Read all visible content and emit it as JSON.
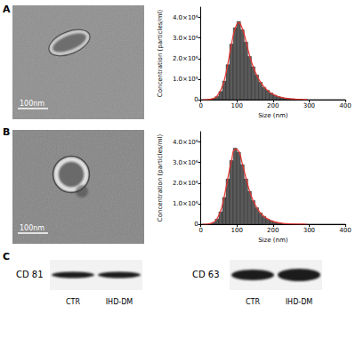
{
  "chart_data": [
    {
      "type": "histogram",
      "xlabel": "Size (nm)",
      "ylabel": "Concentration (particles/ml)",
      "bins": [
        0,
        10,
        20,
        30,
        40,
        50,
        60,
        70,
        80,
        90,
        100,
        110,
        120,
        130,
        140,
        150,
        160,
        170,
        180,
        190,
        200,
        210,
        220,
        230,
        240,
        250,
        260,
        270,
        280,
        290,
        300,
        310,
        320,
        330,
        340,
        350,
        360,
        370,
        380,
        390,
        400
      ],
      "counts": [
        0,
        0,
        20000,
        50000,
        150000,
        400000,
        900000,
        1700000,
        2700000,
        3500000,
        3800000,
        3400000,
        2800000,
        2100000,
        1600000,
        1200000,
        850000,
        600000,
        450000,
        320000,
        220000,
        150000,
        100000,
        70000,
        50000,
        30000,
        20000,
        10000,
        0,
        0,
        0,
        0,
        0,
        0,
        0,
        0,
        0,
        0,
        0,
        0
      ],
      "color": "#5a5a5a",
      "fit": {
        "x": [
          5,
          15,
          25,
          35,
          45,
          55,
          65,
          75,
          85,
          95,
          105,
          115,
          125,
          135,
          145,
          155,
          165,
          175,
          185,
          195,
          205,
          215,
          225,
          235,
          245,
          255,
          265,
          275,
          285,
          295
        ],
        "y": [
          0,
          0,
          15000,
          60000,
          180000,
          450000,
          950000,
          1750000,
          2700000,
          3450000,
          3750000,
          3450000,
          2850000,
          2150000,
          1600000,
          1180000,
          860000,
          620000,
          440000,
          310000,
          215000,
          150000,
          105000,
          72000,
          50000,
          34000,
          22000,
          14000,
          9000,
          5000
        ],
        "color": "#e8322d",
        "line_style": "solid"
      },
      "xlim": [
        0,
        400
      ],
      "xticks": [
        0,
        100,
        200,
        300,
        400
      ],
      "ylim": [
        0,
        4500000
      ],
      "yticks": [
        0,
        {
          "value": 1000000,
          "label": "1.0×10⁶"
        },
        {
          "value": 2000000,
          "label": "2.0×10⁶"
        },
        {
          "value": 3000000,
          "label": "3.0×10⁶"
        },
        {
          "value": 4000000,
          "label": "4.0×10⁶"
        }
      ],
      "grid": false
    },
    {
      "type": "histogram",
      "xlabel": "Size (nm)",
      "ylabel": "Concentration (particles/ml)",
      "bins": [
        0,
        10,
        20,
        30,
        40,
        50,
        60,
        70,
        80,
        90,
        100,
        110,
        120,
        130,
        140,
        150,
        160,
        170,
        180,
        190,
        200,
        210,
        220,
        230,
        240,
        250,
        260,
        270,
        280,
        290,
        300,
        310,
        320,
        330,
        340,
        350,
        360,
        370,
        380,
        390,
        400
      ],
      "counts": [
        0,
        0,
        30000,
        80000,
        250000,
        600000,
        1300000,
        2200000,
        3100000,
        3700000,
        3500000,
        2900000,
        2200000,
        1600000,
        1150000,
        800000,
        550000,
        380000,
        250000,
        170000,
        110000,
        70000,
        40000,
        25000,
        15000,
        8000,
        4000,
        0,
        0,
        0,
        0,
        0,
        0,
        0,
        0,
        0,
        0,
        0,
        0,
        0
      ],
      "color": "#5a5a5a",
      "fit": {
        "x": [
          5,
          15,
          25,
          35,
          45,
          55,
          65,
          75,
          85,
          95,
          105,
          115,
          125,
          135,
          145,
          155,
          165,
          175,
          185,
          195,
          205,
          215,
          225,
          235,
          245,
          255,
          265,
          275,
          285,
          295
        ],
        "y": [
          0,
          0,
          25000,
          90000,
          270000,
          650000,
          1350000,
          2250000,
          3100000,
          3650000,
          3550000,
          2950000,
          2250000,
          1620000,
          1150000,
          800000,
          550000,
          380000,
          255000,
          170000,
          112000,
          72000,
          44000,
          27000,
          16000,
          9000,
          5000,
          2500,
          1200,
          500
        ],
        "color": "#e8322d",
        "line_style": "solid"
      },
      "xlim": [
        0,
        400
      ],
      "xticks": [
        0,
        100,
        200,
        300,
        400
      ],
      "ylim": [
        0,
        4500000
      ],
      "yticks": [
        0,
        {
          "value": 1000000,
          "label": "1.0×10⁶"
        },
        {
          "value": 2000000,
          "label": "2.0×10⁶"
        },
        {
          "value": 3000000,
          "label": "3.0×10⁶"
        },
        {
          "value": 4000000,
          "label": "4.0×10⁶"
        }
      ],
      "grid": false
    }
  ],
  "figure": {
    "panel_labels": [
      "A",
      "B",
      "C"
    ],
    "micrographs": [
      {
        "scale_bar": "100nm"
      },
      {
        "scale_bar": "100nm"
      }
    ],
    "blots": [
      {
        "title": "CD 81",
        "lanes": [
          "CTR",
          "IHD-DM"
        ]
      },
      {
        "title": "CD 63",
        "lanes": [
          "CTR",
          "IHD-DM"
        ]
      }
    ]
  }
}
